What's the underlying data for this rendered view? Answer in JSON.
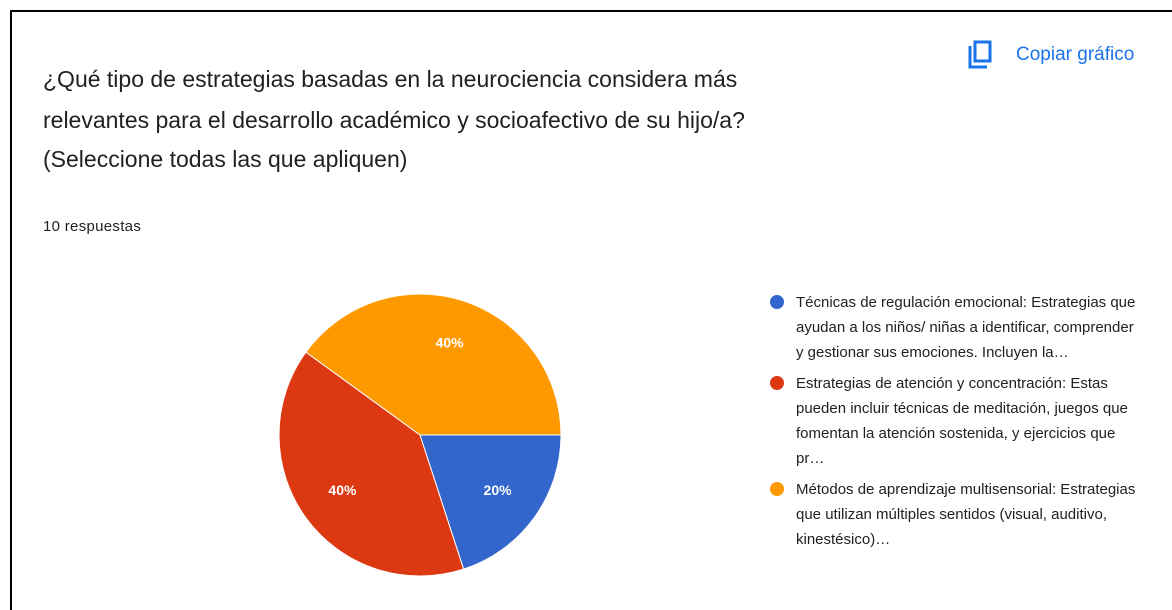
{
  "copy_button": "Copiar gráfico",
  "chart_data": {
    "type": "pie",
    "title": [
      "¿Qué tipo de estrategias basadas en la neurociencia considera más",
      "relevantes para el desarrollo académico y socioafectivo de su hijo/a?",
      "(Seleccione todas las que apliquen)"
    ],
    "subtitle": "10 respuestas",
    "series": [
      {
        "name": "Técnicas de regulación emocional: Estrategias que ayudan a los niños/ niñas a identificar, comprender y gestionar sus emociones. Incluyen la…",
        "color": "#3366cc",
        "values": [
          20
        ],
        "value_labels": [
          "20%"
        ]
      },
      {
        "name": "Estrategias de atención y concentración: Estas pueden incluir técnicas de meditación, juegos que fomentan la atención sostenida, y ejercicios que pr…",
        "color": "#dc3912",
        "values": [
          40
        ],
        "value_labels": [
          "40%"
        ]
      },
      {
        "name": "Métodos de aprendizaje multisensorial: Estrategias que utilizan múltiples sentidos (visual, auditivo, kinestésico)…",
        "color": "#ff9900",
        "values": [
          40
        ],
        "value_labels": [
          "40%"
        ]
      }
    ],
    "legend": "right"
  }
}
